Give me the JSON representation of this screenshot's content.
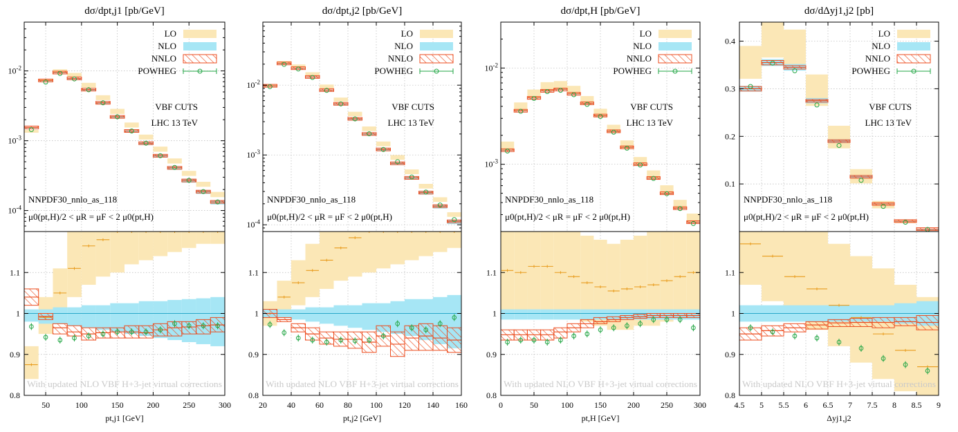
{
  "colors": {
    "lo_fill": "#fbe7b6",
    "lo_line": "#e89b1c",
    "nlo_fill": "#a6e6f5",
    "nlo_line": "#27a7c8",
    "nnlo": "#ec4b1d",
    "powheg": "#22a644",
    "note": "#c9c9c9"
  },
  "legend": {
    "lo": "LO",
    "nlo": "NLO",
    "nnlo": "NNLO",
    "powheg": "POWHEG"
  },
  "annotations": {
    "cuts": "VBF CUTS",
    "collider": "LHC 13 TeV",
    "pdf": "NNPDF30_nnlo_as_118",
    "scale": "μ0(pt,H)/2 < μR = μF < 2 μ0(pt,H)",
    "note": "With updated NLO VBF H+3-jet virtual corrections"
  },
  "chart_data": [
    {
      "type": "bar",
      "title": "dσ/dpt,j1 [pb/GeV]",
      "xlabel": "pt,j1 [GeV]",
      "xlim": [
        20,
        300
      ],
      "xticks": [
        50,
        100,
        150,
        200,
        250,
        300
      ],
      "top": {
        "scale": "log",
        "ylim": [
          5e-05,
          0.05
        ],
        "yticks": [
          0.0001,
          0.001,
          0.01
        ],
        "ytick_labels": [
          "10-4",
          "10-3",
          "10-2"
        ]
      },
      "bottom": {
        "ylim": [
          0.8,
          1.2
        ],
        "yticks": [
          0.8,
          0.9,
          1.0,
          1.1
        ],
        "ytick_labels": [
          "0.8",
          "0.9",
          "1",
          "1.1"
        ]
      },
      "bin_edges": [
        20,
        40,
        60,
        80,
        100,
        120,
        140,
        160,
        180,
        200,
        220,
        240,
        260,
        280,
        300
      ],
      "nnlo": [
        0.00155,
        0.0073,
        0.0095,
        0.0078,
        0.0054,
        0.0035,
        0.0022,
        0.00138,
        0.00092,
        0.00061,
        0.00041,
        0.00027,
        0.000187,
        0.000133
      ],
      "lo_ratio": [
        0.875,
        0.99,
        1.05,
        1.11,
        1.165,
        1.18,
        1.24,
        1.25,
        1.26,
        1.27,
        1.28,
        1.29,
        1.3,
        1.3
      ],
      "lo_band": [
        [
          0.84,
          0.92
        ],
        [
          0.95,
          1.04
        ],
        [
          1.0,
          1.11
        ],
        [
          1.04,
          1.2
        ],
        [
          1.07,
          1.25
        ],
        [
          1.09,
          1.28
        ],
        [
          1.1,
          1.3
        ],
        [
          1.12,
          1.32
        ],
        [
          1.13,
          1.33
        ],
        [
          1.14,
          1.35
        ],
        [
          1.15,
          1.36
        ],
        [
          1.16,
          1.37
        ],
        [
          1.17,
          1.38
        ],
        [
          1.17,
          1.39
        ]
      ],
      "nlo_band": [
        [
          0.98,
          1.01
        ],
        [
          0.975,
          1.01
        ],
        [
          0.975,
          1.015
        ],
        [
          0.97,
          1.015
        ],
        [
          0.965,
          1.02
        ],
        [
          0.96,
          1.02
        ],
        [
          0.955,
          1.025
        ],
        [
          0.95,
          1.025
        ],
        [
          0.945,
          1.03
        ],
        [
          0.94,
          1.03
        ],
        [
          0.935,
          1.033
        ],
        [
          0.93,
          1.035
        ],
        [
          0.925,
          1.037
        ],
        [
          0.92,
          1.04
        ]
      ],
      "nnlo_ratio": [
        1.04,
        0.993,
        0.965,
        0.955,
        0.95,
        0.953,
        0.955,
        0.955,
        0.953,
        0.96,
        0.965,
        0.967,
        0.97,
        0.972
      ],
      "nnlo_band": [
        [
          1.02,
          1.06
        ],
        [
          0.985,
          1.0
        ],
        [
          0.95,
          0.975
        ],
        [
          0.945,
          0.97
        ],
        [
          0.935,
          0.965
        ],
        [
          0.94,
          0.965
        ],
        [
          0.94,
          0.965
        ],
        [
          0.94,
          0.97
        ],
        [
          0.94,
          0.97
        ],
        [
          0.945,
          0.975
        ],
        [
          0.945,
          0.98
        ],
        [
          0.95,
          0.98
        ],
        [
          0.95,
          0.985
        ],
        [
          0.955,
          0.99
        ]
      ],
      "powheg_ratio": [
        0.968,
        0.942,
        0.935,
        0.94,
        0.945,
        0.95,
        0.955,
        0.955,
        0.955,
        0.96,
        0.975,
        0.97,
        0.97,
        0.97
      ]
    },
    {
      "type": "bar",
      "title": "dσ/dpt,j2 [pb/GeV]",
      "xlabel": "pt,j2 [GeV]",
      "xlim": [
        20,
        160
      ],
      "xticks": [
        20,
        40,
        60,
        80,
        100,
        120,
        140,
        160
      ],
      "top": {
        "scale": "log",
        "ylim": [
          8e-05,
          0.08
        ],
        "yticks": [
          0.0001,
          0.001,
          0.01
        ],
        "ytick_labels": [
          "10-4",
          "10-3",
          "10-2"
        ]
      },
      "bottom": {
        "ylim": [
          0.8,
          1.2
        ],
        "yticks": [
          0.8,
          0.9,
          1.0,
          1.1
        ],
        "ytick_labels": [
          "0.8",
          "0.9",
          "1",
          "1.1"
        ]
      },
      "bin_edges": [
        20,
        30,
        40,
        50,
        60,
        70,
        80,
        90,
        100,
        110,
        120,
        130,
        140,
        150,
        160
      ],
      "nnlo": [
        0.0098,
        0.0205,
        0.0175,
        0.0131,
        0.0085,
        0.0054,
        0.0033,
        0.002,
        0.0012,
        0.00076,
        0.00047,
        0.00029,
        0.000185,
        0.000112
      ],
      "lo_ratio": [
        1.0,
        1.04,
        1.075,
        1.105,
        1.13,
        1.16,
        1.185,
        1.2,
        1.22,
        1.23,
        1.24,
        1.25,
        1.26,
        1.27
      ],
      "lo_band": [
        [
          0.97,
          1.03
        ],
        [
          0.99,
          1.08
        ],
        [
          1.02,
          1.13
        ],
        [
          1.04,
          1.17
        ],
        [
          1.06,
          1.2
        ],
        [
          1.08,
          1.23
        ],
        [
          1.09,
          1.26
        ],
        [
          1.1,
          1.28
        ],
        [
          1.11,
          1.3
        ],
        [
          1.12,
          1.31
        ],
        [
          1.13,
          1.32
        ],
        [
          1.14,
          1.33
        ],
        [
          1.15,
          1.34
        ],
        [
          1.16,
          1.35
        ]
      ],
      "nlo_band": [
        [
          0.99,
          1.01
        ],
        [
          0.99,
          1.01
        ],
        [
          0.985,
          1.01
        ],
        [
          0.98,
          1.015
        ],
        [
          0.975,
          1.015
        ],
        [
          0.97,
          1.02
        ],
        [
          0.965,
          1.02
        ],
        [
          0.96,
          1.025
        ],
        [
          0.955,
          1.025
        ],
        [
          0.95,
          1.03
        ],
        [
          0.945,
          1.035
        ],
        [
          0.935,
          1.035
        ],
        [
          0.925,
          1.04
        ],
        [
          0.915,
          1.045
        ]
      ],
      "nnlo_ratio": [
        1.0,
        0.985,
        0.965,
        0.95,
        0.94,
        0.937,
        0.937,
        0.93,
        0.945,
        0.925,
        0.94,
        0.945,
        0.94,
        0.935
      ],
      "nnlo_band": [
        [
          0.99,
          1.01
        ],
        [
          0.98,
          0.99
        ],
        [
          0.955,
          0.975
        ],
        [
          0.935,
          0.965
        ],
        [
          0.925,
          0.955
        ],
        [
          0.92,
          0.955
        ],
        [
          0.915,
          0.955
        ],
        [
          0.905,
          0.955
        ],
        [
          0.92,
          0.97
        ],
        [
          0.895,
          0.955
        ],
        [
          0.91,
          0.97
        ],
        [
          0.91,
          0.975
        ],
        [
          0.91,
          0.97
        ],
        [
          0.905,
          0.965
        ]
      ],
      "powheg_ratio": [
        0.973,
        0.953,
        0.94,
        0.935,
        0.93,
        0.935,
        0.933,
        0.935,
        0.945,
        0.975,
        0.965,
        0.96,
        0.975,
        0.99
      ]
    },
    {
      "type": "bar",
      "title": "dσ/dpt,H [pb/GeV]",
      "xlabel": "pt,H [GeV]",
      "xlim": [
        0,
        300
      ],
      "xticks": [
        0,
        50,
        100,
        150,
        200,
        250,
        300
      ],
      "top": {
        "scale": "log",
        "ylim": [
          0.0002,
          0.03
        ],
        "yticks": [
          0.001,
          0.01
        ],
        "ytick_labels": [
          "10-3",
          "10-2"
        ]
      },
      "bottom": {
        "ylim": [
          0.8,
          1.2
        ],
        "yticks": [
          0.8,
          0.9,
          1.0,
          1.1
        ],
        "ytick_labels": [
          "0.8",
          "0.9",
          "1",
          "1.1"
        ]
      },
      "bin_edges": [
        0,
        20,
        40,
        60,
        80,
        100,
        120,
        140,
        160,
        180,
        200,
        220,
        240,
        260,
        280,
        300
      ],
      "nnlo": [
        0.0014,
        0.0036,
        0.0049,
        0.0058,
        0.006,
        0.0054,
        0.0043,
        0.0032,
        0.0022,
        0.0015,
        0.001,
        0.00072,
        0.0005,
        0.00035,
        0.00025
      ],
      "lo_ratio": [
        1.105,
        1.1,
        1.115,
        1.115,
        1.1,
        1.09,
        1.075,
        1.065,
        1.055,
        1.06,
        1.065,
        1.07,
        1.08,
        1.09,
        1.1
      ],
      "lo_band": [
        [
          1.0,
          1.23
        ],
        [
          1.0,
          1.22
        ],
        [
          1.01,
          1.22
        ],
        [
          1.01,
          1.23
        ],
        [
          1.0,
          1.22
        ],
        [
          0.99,
          1.21
        ],
        [
          0.98,
          1.19
        ],
        [
          0.97,
          1.18
        ],
        [
          0.96,
          1.17
        ],
        [
          0.96,
          1.18
        ],
        [
          0.97,
          1.19
        ],
        [
          0.97,
          1.2
        ],
        [
          0.98,
          1.21
        ],
        [
          0.99,
          1.22
        ],
        [
          1.0,
          1.23
        ]
      ],
      "nlo_band": [
        [
          0.985,
          1.01
        ],
        [
          0.985,
          1.01
        ],
        [
          0.985,
          1.01
        ],
        [
          0.985,
          1.01
        ],
        [
          0.985,
          1.01
        ],
        [
          0.985,
          1.01
        ],
        [
          0.985,
          1.01
        ],
        [
          0.985,
          1.01
        ],
        [
          0.985,
          1.01
        ],
        [
          0.985,
          1.01
        ],
        [
          0.985,
          1.01
        ],
        [
          0.985,
          1.01
        ],
        [
          0.985,
          1.01
        ],
        [
          0.985,
          1.01
        ],
        [
          0.985,
          1.01
        ]
      ],
      "nnlo_ratio": [
        0.948,
        0.948,
        0.948,
        0.948,
        0.955,
        0.965,
        0.975,
        0.98,
        0.985,
        0.99,
        0.992,
        0.995,
        0.995,
        0.995,
        0.995
      ],
      "nnlo_band": [
        [
          0.935,
          0.96
        ],
        [
          0.935,
          0.96
        ],
        [
          0.935,
          0.96
        ],
        [
          0.935,
          0.96
        ],
        [
          0.94,
          0.965
        ],
        [
          0.955,
          0.975
        ],
        [
          0.965,
          0.985
        ],
        [
          0.975,
          0.99
        ],
        [
          0.98,
          0.992
        ],
        [
          0.985,
          0.995
        ],
        [
          0.988,
          0.998
        ],
        [
          0.99,
          1.0
        ],
        [
          0.99,
          1.0
        ],
        [
          0.99,
          1.0
        ],
        [
          0.99,
          1.0
        ]
      ],
      "powheg_ratio": [
        0.93,
        0.935,
        0.935,
        0.93,
        0.935,
        0.945,
        0.95,
        0.96,
        0.965,
        0.97,
        0.975,
        0.985,
        0.985,
        0.985,
        0.965
      ]
    },
    {
      "type": "bar",
      "title": "dσ/dΔyj1,j2 [pb]",
      "xlabel": "Δyj1,j2",
      "xlim": [
        4.5,
        9
      ],
      "xticks": [
        4.5,
        5,
        5.5,
        6,
        6.5,
        7,
        7.5,
        8,
        8.5,
        9
      ],
      "top": {
        "scale": "linear",
        "ylim": [
          0,
          0.44
        ],
        "yticks": [
          0.1,
          0.2,
          0.3,
          0.4
        ],
        "ytick_labels": [
          "0.1",
          "0.2",
          "0.3",
          "0.4"
        ]
      },
      "bottom": {
        "ylim": [
          0.8,
          1.2
        ],
        "yticks": [
          0.8,
          0.9,
          1.0,
          1.1
        ],
        "ytick_labels": [
          "0.8",
          "0.9",
          "1",
          "1.1"
        ]
      },
      "bin_edges": [
        4.5,
        5,
        5.5,
        6,
        6.5,
        7,
        7.5,
        8,
        8.5,
        9
      ],
      "nnlo": [
        0.3,
        0.355,
        0.345,
        0.275,
        0.19,
        0.115,
        0.058,
        0.022,
        0.005
      ],
      "lo_ratio": [
        1.17,
        1.14,
        1.09,
        1.06,
        1.02,
        0.99,
        0.95,
        0.91,
        0.87
      ],
      "lo_band": [
        [
          1.07,
          1.3
        ],
        [
          1.03,
          1.28
        ],
        [
          0.99,
          1.23
        ],
        [
          0.96,
          1.2
        ],
        [
          0.92,
          1.17
        ],
        [
          0.88,
          1.14
        ],
        [
          0.84,
          1.11
        ],
        [
          0.81,
          1.07
        ],
        [
          0.78,
          1.04
        ]
      ],
      "nlo_band": [
        [
          0.98,
          1.02
        ],
        [
          0.98,
          1.02
        ],
        [
          0.98,
          1.02
        ],
        [
          0.98,
          1.02
        ],
        [
          0.98,
          1.02
        ],
        [
          0.98,
          1.02
        ],
        [
          0.98,
          1.02
        ],
        [
          0.975,
          1.025
        ],
        [
          0.97,
          1.03
        ]
      ],
      "nnlo_ratio": [
        0.95,
        0.958,
        0.965,
        0.972,
        0.977,
        0.978,
        0.978,
        0.98,
        0.978
      ],
      "nnlo_band": [
        [
          0.935,
          0.965
        ],
        [
          0.945,
          0.97
        ],
        [
          0.955,
          0.975
        ],
        [
          0.962,
          0.98
        ],
        [
          0.968,
          0.985
        ],
        [
          0.968,
          0.988
        ],
        [
          0.965,
          0.99
        ],
        [
          0.97,
          0.99
        ],
        [
          0.96,
          0.995
        ]
      ],
      "powheg_ratio": [
        0.965,
        0.955,
        0.945,
        0.94,
        0.93,
        0.915,
        0.89,
        0.875,
        0.86
      ]
    }
  ]
}
